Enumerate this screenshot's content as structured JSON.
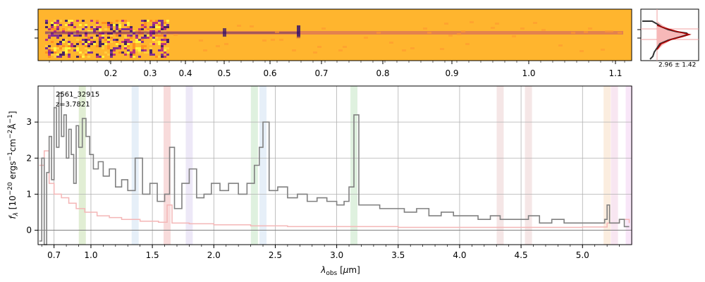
{
  "colors": {
    "spectrum": "#808080",
    "error": "#f4b6b6",
    "grid": "#b0b0b0",
    "image_bg": "#ffb52e",
    "trace_dark": "#2a0a6e",
    "trace_mid": "#b0208a",
    "profile_line": "#333333",
    "profile_fit": "#b00000",
    "profile_fill": "#f7b8b8"
  },
  "image_panel": {
    "top_ticks_um": [
      "0.2",
      "0.3",
      "0.4",
      "0.5",
      "0.6",
      "0.7",
      "0.8",
      "0.9",
      "1.0",
      "1.1"
    ]
  },
  "profile_panel": {
    "label": "2.96 ± 1.42",
    "center": 2.96,
    "sigma": 1.42
  },
  "annotation": {
    "id": "2561_32915",
    "redshift": "z=3.7821"
  },
  "chart_data": {
    "type": "line",
    "xlabel": "λobs [μm]",
    "ylabel": "fλ [10−20 ergs−1cm−2Å−1]",
    "xlim": [
      0.57,
      5.4
    ],
    "ylim": [
      -0.4,
      4.0
    ],
    "x_ticks": [
      "0.7",
      "1.0",
      "1.5",
      "2.0",
      "2.5",
      "3.0",
      "3.5",
      "4.0",
      "4.5",
      "5.0"
    ],
    "y_ticks": [
      "0",
      "1",
      "2",
      "3"
    ],
    "grid": true,
    "line_bands_um": [
      {
        "x": 0.93,
        "color": "#bcd9a0"
      },
      {
        "x": 1.36,
        "color": "#c8dcf0"
      },
      {
        "x": 1.62,
        "color": "#f0b0b0"
      },
      {
        "x": 1.8,
        "color": "#d6ccee"
      },
      {
        "x": 2.33,
        "color": "#b8e0b8"
      },
      {
        "x": 2.4,
        "color": "#c8dcf0"
      },
      {
        "x": 3.14,
        "color": "#b8e0b8"
      },
      {
        "x": 4.33,
        "color": "#e8c8c8"
      },
      {
        "x": 4.56,
        "color": "#e8c8c8"
      },
      {
        "x": 5.2,
        "color": "#f6d8b8"
      },
      {
        "x": 5.26,
        "color": "#f0c8e0"
      },
      {
        "x": 5.38,
        "color": "#f0c8f0"
      }
    ],
    "series": [
      {
        "points": [
          [
            0.58,
            -0.3
          ],
          [
            0.6,
            2.0
          ],
          [
            0.62,
            -0.4
          ],
          [
            0.64,
            1.6
          ],
          [
            0.66,
            2.6
          ],
          [
            0.68,
            1.4
          ],
          [
            0.7,
            3.4
          ],
          [
            0.72,
            2.3
          ],
          [
            0.74,
            3.8
          ],
          [
            0.76,
            2.6
          ],
          [
            0.78,
            3.2
          ],
          [
            0.8,
            2.0
          ],
          [
            0.82,
            2.8
          ],
          [
            0.84,
            2.1
          ],
          [
            0.86,
            1.3
          ],
          [
            0.88,
            2.9
          ],
          [
            0.9,
            2.3
          ],
          [
            0.93,
            3.1
          ],
          [
            0.96,
            2.6
          ],
          [
            0.99,
            2.1
          ],
          [
            1.02,
            1.7
          ],
          [
            1.06,
            1.9
          ],
          [
            1.1,
            1.5
          ],
          [
            1.15,
            1.7
          ],
          [
            1.2,
            1.2
          ],
          [
            1.25,
            1.4
          ],
          [
            1.3,
            1.1
          ],
          [
            1.36,
            2.0
          ],
          [
            1.42,
            1.0
          ],
          [
            1.48,
            1.3
          ],
          [
            1.54,
            0.8
          ],
          [
            1.6,
            1.0
          ],
          [
            1.64,
            2.3
          ],
          [
            1.68,
            0.6
          ],
          [
            1.74,
            1.3
          ],
          [
            1.8,
            1.7
          ],
          [
            1.86,
            0.9
          ],
          [
            1.92,
            1.0
          ],
          [
            1.98,
            1.3
          ],
          [
            2.05,
            1.1
          ],
          [
            2.12,
            1.3
          ],
          [
            2.2,
            1.0
          ],
          [
            2.27,
            1.3
          ],
          [
            2.33,
            1.8
          ],
          [
            2.37,
            2.3
          ],
          [
            2.4,
            3.0
          ],
          [
            2.45,
            1.1
          ],
          [
            2.52,
            1.2
          ],
          [
            2.6,
            0.9
          ],
          [
            2.68,
            1.0
          ],
          [
            2.76,
            0.8
          ],
          [
            2.84,
            0.9
          ],
          [
            2.92,
            0.8
          ],
          [
            3.0,
            0.7
          ],
          [
            3.06,
            0.8
          ],
          [
            3.1,
            1.2
          ],
          [
            3.14,
            3.2
          ],
          [
            3.18,
            0.7
          ],
          [
            3.25,
            0.7
          ],
          [
            3.35,
            0.6
          ],
          [
            3.45,
            0.6
          ],
          [
            3.55,
            0.5
          ],
          [
            3.65,
            0.6
          ],
          [
            3.75,
            0.4
          ],
          [
            3.85,
            0.5
          ],
          [
            3.95,
            0.4
          ],
          [
            4.05,
            0.4
          ],
          [
            4.15,
            0.3
          ],
          [
            4.25,
            0.4
          ],
          [
            4.33,
            0.3
          ],
          [
            4.42,
            0.3
          ],
          [
            4.5,
            0.3
          ],
          [
            4.56,
            0.4
          ],
          [
            4.65,
            0.2
          ],
          [
            4.75,
            0.3
          ],
          [
            4.85,
            0.2
          ],
          [
            4.95,
            0.2
          ],
          [
            5.05,
            0.2
          ],
          [
            5.12,
            0.2
          ],
          [
            5.18,
            0.3
          ],
          [
            5.2,
            0.7
          ],
          [
            5.22,
            0.2
          ],
          [
            5.26,
            0.2
          ],
          [
            5.3,
            0.3
          ],
          [
            5.34,
            0.1
          ],
          [
            5.38,
            0.1
          ]
        ]
      },
      {
        "points": [
          [
            0.58,
            1.8
          ],
          [
            0.62,
            2.2
          ],
          [
            0.66,
            1.3
          ],
          [
            0.7,
            1.0
          ],
          [
            0.76,
            0.9
          ],
          [
            0.82,
            0.75
          ],
          [
            0.88,
            0.6
          ],
          [
            0.95,
            0.5
          ],
          [
            1.05,
            0.4
          ],
          [
            1.15,
            0.35
          ],
          [
            1.25,
            0.3
          ],
          [
            1.4,
            0.25
          ],
          [
            1.55,
            0.22
          ],
          [
            1.62,
            0.7
          ],
          [
            1.66,
            0.2
          ],
          [
            1.8,
            0.18
          ],
          [
            2.0,
            0.15
          ],
          [
            2.3,
            0.12
          ],
          [
            2.6,
            0.1
          ],
          [
            3.0,
            0.1
          ],
          [
            3.5,
            0.08
          ],
          [
            4.0,
            0.08
          ],
          [
            4.5,
            0.08
          ],
          [
            5.0,
            0.09
          ],
          [
            5.2,
            0.2
          ],
          [
            5.3,
            0.3
          ],
          [
            5.38,
            0.2
          ]
        ]
      }
    ]
  }
}
